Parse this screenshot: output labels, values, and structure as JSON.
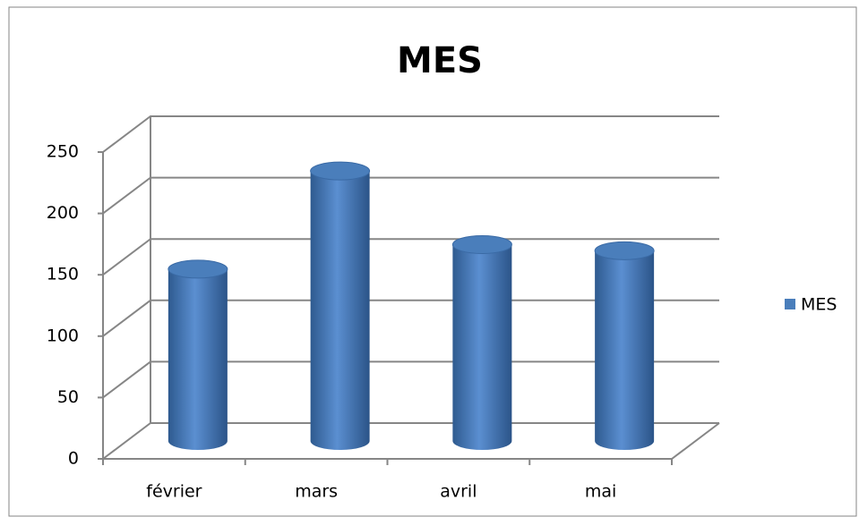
{
  "chart_data": {
    "type": "bar3d",
    "title": "MES",
    "categories": [
      "février",
      "mars",
      "avril",
      "mai"
    ],
    "series": [
      {
        "name": "MES",
        "color": "#4a7ebb",
        "values": [
          140,
          220,
          160,
          155
        ]
      }
    ],
    "ylim": [
      0,
      250
    ],
    "yticks": [
      0,
      50,
      100,
      150,
      200,
      250
    ],
    "grid": true,
    "legend": "right"
  }
}
